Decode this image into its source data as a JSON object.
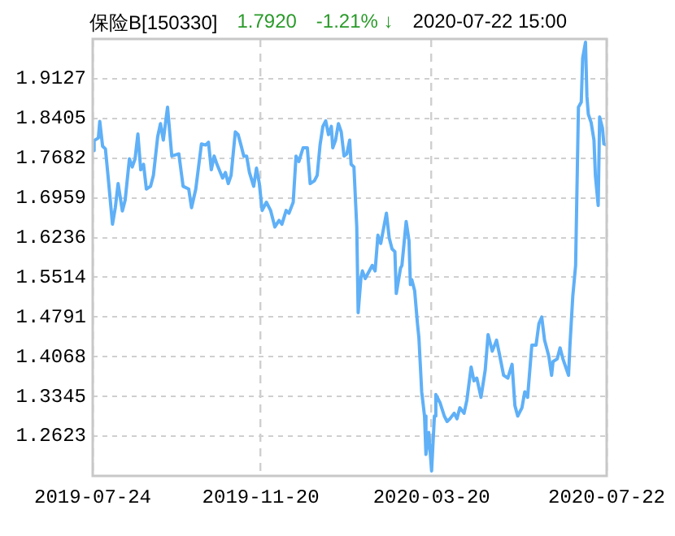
{
  "chart_data": {
    "type": "line",
    "title": "保险B[150330]",
    "annotations": [
      "1.7920",
      "-1.21% ↓",
      "2020-07-22 15:00"
    ],
    "x": [
      "2019-07-24",
      "2019-07-25",
      "2019-07-28",
      "2019-07-29",
      "2019-07-31",
      "2019-08-02",
      "2019-08-04",
      "2019-08-07",
      "2019-08-09",
      "2019-08-11",
      "2019-08-14",
      "2019-08-16",
      "2019-08-19",
      "2019-08-21",
      "2019-08-23",
      "2019-08-25",
      "2019-08-27",
      "2019-08-29",
      "2019-08-31",
      "2019-09-03",
      "2019-09-05",
      "2019-09-08",
      "2019-09-10",
      "2019-09-12",
      "2019-09-15",
      "2019-09-18",
      "2019-09-23",
      "2019-09-26",
      "2019-09-30",
      "2019-10-02",
      "2019-10-05",
      "2019-10-09",
      "2019-10-12",
      "2019-10-14",
      "2019-10-16",
      "2019-10-18",
      "2019-10-20",
      "2019-10-24",
      "2019-10-26",
      "2019-10-28",
      "2019-10-30",
      "2019-11-02",
      "2019-11-04",
      "2019-11-06",
      "2019-11-08",
      "2019-11-10",
      "2019-11-12",
      "2019-11-15",
      "2019-11-17",
      "2019-11-19",
      "2019-11-21",
      "2019-11-24",
      "2019-11-27",
      "2019-11-30",
      "2019-12-03",
      "2019-12-05",
      "2019-12-08",
      "2019-12-10",
      "2019-12-13",
      "2019-12-15",
      "2019-12-17",
      "2019-12-20",
      "2019-12-23",
      "2019-12-25",
      "2019-12-28",
      "2019-12-30",
      "2020-01-01",
      "2020-01-03",
      "2020-01-05",
      "2020-01-07",
      "2020-01-09",
      "2020-01-10",
      "2020-01-12",
      "2020-01-14",
      "2020-01-16",
      "2020-01-18",
      "2020-01-20",
      "2020-01-22",
      "2020-01-23",
      "2020-01-25",
      "2020-01-27",
      "2020-01-28",
      "2020-01-30",
      "2020-01-31",
      "2020-02-02",
      "2020-02-07",
      "2020-02-09",
      "2020-02-11",
      "2020-02-13",
      "2020-02-17",
      "2020-02-19",
      "2020-02-21",
      "2020-02-23",
      "2020-02-24",
      "2020-02-27",
      "2020-02-28",
      "2020-03-02",
      "2020-03-04",
      "2020-03-05",
      "2020-03-06",
      "2020-03-08",
      "2020-03-10",
      "2020-03-11",
      "2020-03-13",
      "2020-03-15",
      "2020-03-16",
      "2020-03-18",
      "2020-03-20",
      "2020-03-22",
      "2020-03-23",
      "2020-03-26",
      "2020-03-29",
      "2020-03-31",
      "2020-04-02",
      "2020-04-05",
      "2020-04-07",
      "2020-04-09",
      "2020-04-12",
      "2020-04-14",
      "2020-04-17",
      "2020-04-19",
      "2020-04-21",
      "2020-04-24",
      "2020-04-27",
      "2020-04-29",
      "2020-05-02",
      "2020-05-05",
      "2020-05-07",
      "2020-05-10",
      "2020-05-13",
      "2020-05-16",
      "2020-05-18",
      "2020-05-20",
      "2020-05-23",
      "2020-05-25",
      "2020-05-27",
      "2020-05-30",
      "2020-06-02",
      "2020-06-04",
      "2020-06-06",
      "2020-06-08",
      "2020-06-11",
      "2020-06-13",
      "2020-06-14",
      "2020-06-17",
      "2020-06-19",
      "2020-06-21",
      "2020-06-25",
      "2020-06-26",
      "2020-06-28",
      "2020-06-30",
      "2020-07-02",
      "2020-07-04",
      "2020-07-05",
      "2020-07-07",
      "2020-07-08",
      "2020-07-09",
      "2020-07-11",
      "2020-07-13",
      "2020-07-14",
      "2020-07-16",
      "2020-07-17",
      "2020-07-19",
      "2020-07-20",
      "2020-07-22"
    ],
    "series": [
      {
        "color": "#5fb0f7",
        "values": [
          1.782,
          1.8,
          1.805,
          1.835,
          1.79,
          1.785,
          1.732,
          1.648,
          1.678,
          1.722,
          1.672,
          1.692,
          1.767,
          1.752,
          1.767,
          1.812,
          1.747,
          1.757,
          1.712,
          1.717,
          1.737,
          1.807,
          1.831,
          1.801,
          1.861,
          1.772,
          1.776,
          1.717,
          1.712,
          1.678,
          1.712,
          1.794,
          1.792,
          1.797,
          1.747,
          1.772,
          1.757,
          1.732,
          1.742,
          1.722,
          1.737,
          1.816,
          1.811,
          1.792,
          1.772,
          1.772,
          1.742,
          1.717,
          1.75,
          1.722,
          1.673,
          1.688,
          1.673,
          1.643,
          1.655,
          1.648,
          1.673,
          1.668,
          1.688,
          1.772,
          1.762,
          1.787,
          1.787,
          1.722,
          1.727,
          1.737,
          1.792,
          1.826,
          1.836,
          1.811,
          1.826,
          1.787,
          1.801,
          1.831,
          1.816,
          1.772,
          1.776,
          1.801,
          1.757,
          1.752,
          1.643,
          1.487,
          1.551,
          1.563,
          1.549,
          1.573,
          1.563,
          1.628,
          1.613,
          1.668,
          1.623,
          1.603,
          1.598,
          1.522,
          1.568,
          1.573,
          1.653,
          1.618,
          1.538,
          1.547,
          1.527,
          1.467,
          1.442,
          1.343,
          1.299,
          1.229,
          1.269,
          1.199,
          1.299,
          1.338,
          1.323,
          1.299,
          1.289,
          1.294,
          1.304,
          1.294,
          1.314,
          1.304,
          1.328,
          1.388,
          1.363,
          1.368,
          1.333,
          1.383,
          1.447,
          1.417,
          1.437,
          1.412,
          1.373,
          1.368,
          1.393,
          1.318,
          1.299,
          1.314,
          1.343,
          1.333,
          1.428,
          1.428,
          1.467,
          1.479,
          1.437,
          1.408,
          1.373,
          1.398,
          1.403,
          1.423,
          1.403,
          1.373,
          1.428,
          1.517,
          1.573,
          1.861,
          1.87,
          1.95,
          1.979,
          1.881,
          1.848,
          1.833,
          1.801,
          1.737,
          1.682,
          1.843,
          1.823,
          1.794,
          1.792
        ]
      }
    ],
    "xlim": [
      "2019-07-24",
      "2020-07-22"
    ],
    "xticks": [
      "2019-07-24",
      "2019-11-20",
      "2020-03-20",
      "2020-07-22"
    ],
    "ylim": [
      1.19,
      1.985
    ],
    "yticks": [
      {
        "value": 1.2623,
        "label": "1.2623"
      },
      {
        "value": 1.3345,
        "label": "1.3345"
      },
      {
        "value": 1.4068,
        "label": "1.4068"
      },
      {
        "value": 1.4791,
        "label": "1.4791"
      },
      {
        "value": 1.5514,
        "label": "1.5514"
      },
      {
        "value": 1.6236,
        "label": "1.6236"
      },
      {
        "value": 1.6959,
        "label": "1.6959"
      },
      {
        "value": 1.7682,
        "label": "1.7682"
      },
      {
        "value": 1.8405,
        "label": "1.8405"
      },
      {
        "value": 1.9127,
        "label": "1.9127"
      }
    ],
    "grid": true,
    "legend": false,
    "marker": "none",
    "line_style": "solid"
  }
}
